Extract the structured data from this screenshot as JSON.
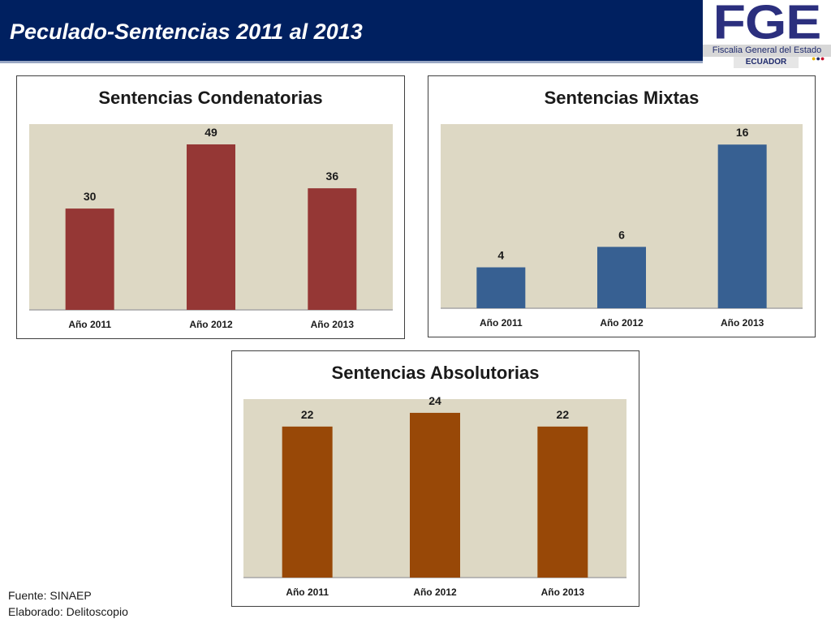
{
  "header": {
    "title": "Peculado-Sentencias 2011 al 2013"
  },
  "logo": {
    "letters": "FGE",
    "subtitle": "Fiscalia General del Estado",
    "country": "ECUADOR"
  },
  "colors": {
    "header_bg": "#002060",
    "plot_bg": "#ddd8c4",
    "condenatorias": "#953735",
    "mixtas": "#376092",
    "absolutorias": "#984807"
  },
  "chart_data": [
    {
      "type": "bar",
      "title": "Sentencias Condenatorias",
      "categories": [
        "Año 2011",
        "Año 2012",
        "Año 2013"
      ],
      "values": [
        30,
        49,
        36
      ],
      "ylim": [
        0,
        55
      ],
      "color": "#953735",
      "grid": false
    },
    {
      "type": "bar",
      "title": "Sentencias Mixtas",
      "categories": [
        "Año 2011",
        "Año 2012",
        "Año 2013"
      ],
      "values": [
        4,
        6,
        16
      ],
      "ylim": [
        0,
        18
      ],
      "color": "#376092",
      "grid": false
    },
    {
      "type": "bar",
      "title": "Sentencias Absolutorias",
      "categories": [
        "Año 2011",
        "Año 2012",
        "Año 2013"
      ],
      "values": [
        22,
        24,
        22
      ],
      "ylim": [
        0,
        26
      ],
      "color": "#984807",
      "grid": false
    }
  ],
  "footer": {
    "source": "Fuente: SINAEP",
    "author": "Elaborado: Delitoscopio"
  }
}
